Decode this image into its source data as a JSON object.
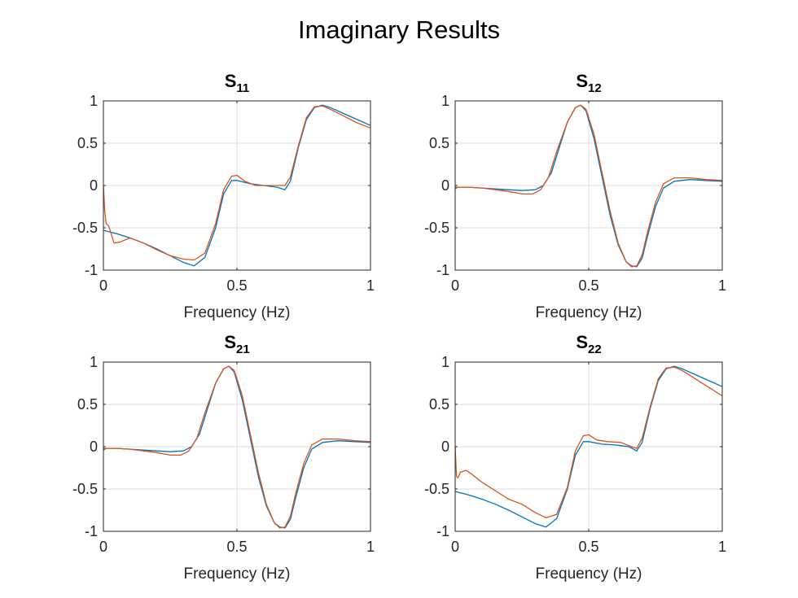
{
  "figure": {
    "title": "Imaginary Results"
  },
  "chart_data": [
    {
      "type": "line",
      "title": "S",
      "subscript": "11",
      "xlabel": "Frequency (Hz)",
      "ylabel": "",
      "xlim": [
        0,
        1
      ],
      "ylim": [
        -1,
        1
      ],
      "xticks": [
        "0",
        "0.5",
        "1"
      ],
      "yticks": [
        "1",
        "0.5",
        "0",
        "-0.5",
        "-1"
      ],
      "xtick_values": [
        0,
        0.5,
        1
      ],
      "ytick_values": [
        1,
        0.5,
        0,
        -0.5,
        -1
      ],
      "grid": "center",
      "series": [
        {
          "color": "#0072BD",
          "x": [
            0,
            0.05,
            0.1,
            0.15,
            0.2,
            0.25,
            0.3,
            0.34,
            0.38,
            0.42,
            0.45,
            0.48,
            0.5,
            0.55,
            0.6,
            0.65,
            0.68,
            0.7,
            0.73,
            0.76,
            0.79,
            0.82,
            0.85,
            0.9,
            0.95,
            1.0
          ],
          "y": [
            -0.53,
            -0.57,
            -0.62,
            -0.68,
            -0.75,
            -0.83,
            -0.91,
            -0.95,
            -0.85,
            -0.5,
            -0.1,
            0.06,
            0.06,
            0.02,
            0.0,
            -0.02,
            -0.05,
            0.05,
            0.45,
            0.78,
            0.92,
            0.95,
            0.92,
            0.85,
            0.78,
            0.71
          ]
        },
        {
          "color": "#D95319",
          "x": [
            0,
            0.005,
            0.01,
            0.02,
            0.03,
            0.04,
            0.06,
            0.1,
            0.15,
            0.2,
            0.25,
            0.3,
            0.34,
            0.38,
            0.42,
            0.45,
            0.48,
            0.5,
            0.53,
            0.57,
            0.62,
            0.66,
            0.68,
            0.7,
            0.73,
            0.76,
            0.79,
            0.82,
            0.85,
            0.9,
            0.95,
            1.0
          ],
          "y": [
            0.0,
            -0.3,
            -0.45,
            -0.48,
            -0.58,
            -0.68,
            -0.67,
            -0.62,
            -0.68,
            -0.76,
            -0.83,
            -0.87,
            -0.88,
            -0.8,
            -0.45,
            -0.05,
            0.11,
            0.12,
            0.05,
            0.0,
            0.0,
            0.0,
            0.0,
            0.1,
            0.47,
            0.8,
            0.93,
            0.94,
            0.9,
            0.82,
            0.74,
            0.68
          ]
        }
      ]
    },
    {
      "type": "line",
      "title": "S",
      "subscript": "12",
      "xlabel": "Frequency (Hz)",
      "ylabel": "",
      "xlim": [
        0,
        1
      ],
      "ylim": [
        -1,
        1
      ],
      "xticks": [
        "0",
        "0.5",
        "1"
      ],
      "yticks": [
        "1",
        "0.5",
        "0",
        "-0.5",
        "-1"
      ],
      "xtick_values": [
        0,
        0.5,
        1
      ],
      "ytick_values": [
        1,
        0.5,
        0,
        -0.5,
        -1
      ],
      "grid": "center",
      "series": [
        {
          "color": "#0072BD",
          "x": [
            0,
            0.05,
            0.1,
            0.15,
            0.2,
            0.25,
            0.3,
            0.33,
            0.36,
            0.39,
            0.42,
            0.45,
            0.47,
            0.49,
            0.52,
            0.55,
            0.58,
            0.61,
            0.64,
            0.66,
            0.68,
            0.7,
            0.72,
            0.75,
            0.78,
            0.82,
            0.88,
            0.94,
            1.0
          ],
          "y": [
            -0.02,
            -0.02,
            -0.03,
            -0.04,
            -0.05,
            -0.06,
            -0.05,
            0.0,
            0.15,
            0.45,
            0.75,
            0.92,
            0.95,
            0.88,
            0.55,
            0.1,
            -0.35,
            -0.7,
            -0.9,
            -0.95,
            -0.96,
            -0.86,
            -0.6,
            -0.25,
            -0.03,
            0.05,
            0.07,
            0.06,
            0.05
          ]
        },
        {
          "color": "#D95319",
          "x": [
            0,
            0.01,
            0.05,
            0.1,
            0.15,
            0.2,
            0.25,
            0.29,
            0.32,
            0.35,
            0.38,
            0.42,
            0.45,
            0.47,
            0.49,
            0.52,
            0.55,
            0.58,
            0.61,
            0.64,
            0.66,
            0.68,
            0.7,
            0.72,
            0.75,
            0.78,
            0.82,
            0.88,
            0.94,
            1.0
          ],
          "y": [
            -0.04,
            -0.02,
            -0.02,
            -0.03,
            -0.05,
            -0.07,
            -0.1,
            -0.1,
            -0.05,
            0.1,
            0.4,
            0.75,
            0.92,
            0.95,
            0.9,
            0.6,
            0.15,
            -0.3,
            -0.68,
            -0.9,
            -0.96,
            -0.95,
            -0.82,
            -0.55,
            -0.2,
            0.02,
            0.09,
            0.09,
            0.07,
            0.06
          ]
        }
      ]
    },
    {
      "type": "line",
      "title": "S",
      "subscript": "21",
      "xlabel": "Frequency (Hz)",
      "ylabel": "",
      "xlim": [
        0,
        1
      ],
      "ylim": [
        -1,
        1
      ],
      "xticks": [
        "0",
        "0.5",
        "1"
      ],
      "yticks": [
        "1",
        "0.5",
        "0",
        "-0.5",
        "-1"
      ],
      "xtick_values": [
        0,
        0.5,
        1
      ],
      "ytick_values": [
        1,
        0.5,
        0,
        -0.5,
        -1
      ],
      "grid": "center",
      "series": [
        {
          "color": "#0072BD",
          "x": [
            0,
            0.05,
            0.1,
            0.15,
            0.2,
            0.25,
            0.3,
            0.33,
            0.36,
            0.39,
            0.42,
            0.45,
            0.47,
            0.49,
            0.52,
            0.55,
            0.58,
            0.61,
            0.64,
            0.66,
            0.68,
            0.7,
            0.72,
            0.75,
            0.78,
            0.82,
            0.88,
            0.94,
            1.0
          ],
          "y": [
            -0.02,
            -0.02,
            -0.03,
            -0.04,
            -0.05,
            -0.06,
            -0.05,
            0.0,
            0.15,
            0.45,
            0.75,
            0.92,
            0.95,
            0.88,
            0.55,
            0.1,
            -0.35,
            -0.7,
            -0.9,
            -0.95,
            -0.96,
            -0.86,
            -0.6,
            -0.25,
            -0.03,
            0.05,
            0.07,
            0.06,
            0.05
          ]
        },
        {
          "color": "#D95319",
          "x": [
            0,
            0.01,
            0.05,
            0.1,
            0.15,
            0.2,
            0.25,
            0.29,
            0.32,
            0.35,
            0.38,
            0.42,
            0.45,
            0.47,
            0.49,
            0.52,
            0.55,
            0.58,
            0.61,
            0.64,
            0.66,
            0.68,
            0.7,
            0.72,
            0.75,
            0.78,
            0.82,
            0.88,
            0.94,
            1.0
          ],
          "y": [
            -0.04,
            -0.02,
            -0.02,
            -0.03,
            -0.05,
            -0.07,
            -0.1,
            -0.1,
            -0.05,
            0.1,
            0.4,
            0.75,
            0.92,
            0.95,
            0.9,
            0.6,
            0.15,
            -0.3,
            -0.68,
            -0.9,
            -0.96,
            -0.95,
            -0.82,
            -0.55,
            -0.2,
            0.02,
            0.09,
            0.09,
            0.07,
            0.06
          ]
        }
      ]
    },
    {
      "type": "line",
      "title": "S",
      "subscript": "22",
      "xlabel": "Frequency (Hz)",
      "ylabel": "",
      "xlim": [
        0,
        1
      ],
      "ylim": [
        -1,
        1
      ],
      "xticks": [
        "0",
        "0.5",
        "1"
      ],
      "yticks": [
        "1",
        "0.5",
        "0",
        "-0.5",
        "-1"
      ],
      "xtick_values": [
        0,
        0.5,
        1
      ],
      "ytick_values": [
        1,
        0.5,
        0,
        -0.5,
        -1
      ],
      "grid": "center",
      "series": [
        {
          "color": "#0072BD",
          "x": [
            0,
            0.05,
            0.1,
            0.15,
            0.2,
            0.25,
            0.3,
            0.34,
            0.38,
            0.42,
            0.45,
            0.48,
            0.5,
            0.55,
            0.6,
            0.65,
            0.68,
            0.7,
            0.73,
            0.76,
            0.79,
            0.82,
            0.85,
            0.9,
            0.95,
            1.0
          ],
          "y": [
            -0.53,
            -0.57,
            -0.62,
            -0.68,
            -0.75,
            -0.83,
            -0.91,
            -0.95,
            -0.85,
            -0.5,
            -0.1,
            0.06,
            0.06,
            0.03,
            0.02,
            0.0,
            -0.05,
            0.05,
            0.45,
            0.78,
            0.92,
            0.95,
            0.92,
            0.85,
            0.78,
            0.71
          ]
        },
        {
          "color": "#D95319",
          "x": [
            0,
            0.005,
            0.01,
            0.02,
            0.04,
            0.06,
            0.1,
            0.15,
            0.2,
            0.25,
            0.3,
            0.34,
            0.38,
            0.42,
            0.45,
            0.48,
            0.5,
            0.53,
            0.57,
            0.62,
            0.66,
            0.68,
            0.7,
            0.73,
            0.76,
            0.79,
            0.82,
            0.85,
            0.9,
            0.95,
            1.0
          ],
          "y": [
            0.0,
            -0.35,
            -0.37,
            -0.3,
            -0.28,
            -0.32,
            -0.42,
            -0.52,
            -0.62,
            -0.68,
            -0.78,
            -0.84,
            -0.8,
            -0.48,
            -0.05,
            0.13,
            0.14,
            0.08,
            0.06,
            0.05,
            0.0,
            -0.02,
            0.1,
            0.47,
            0.8,
            0.93,
            0.94,
            0.9,
            0.8,
            0.7,
            0.6
          ]
        }
      ]
    }
  ]
}
